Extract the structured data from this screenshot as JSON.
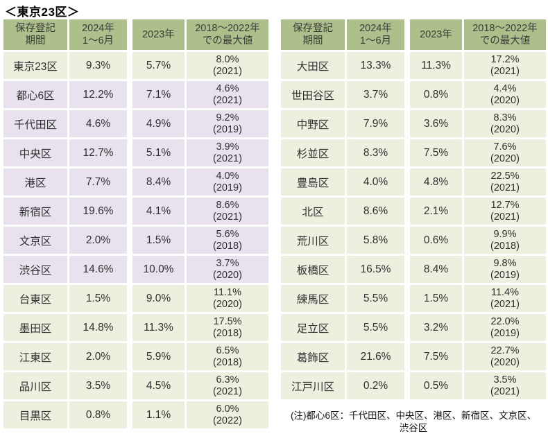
{
  "title": "＜東京23区＞",
  "colors": {
    "header_bg": "#adc08b",
    "row_green": "#ebf1de",
    "row_highlight": "#e7e2ee",
    "text": "#3b3b3b"
  },
  "note": {
    "line1": "(注)都心6区：千代田区、中央区、港区、新宿区、文京区、",
    "line2": "渋谷区"
  },
  "chart_data": {
    "type": "table",
    "title": "＜東京23区＞",
    "header_labels": [
      "保存登記\n期間",
      "2024年\n1～6月",
      "2023年",
      "2018～2022年\nでの最大値"
    ],
    "tables": [
      {
        "rows": [
          {
            "name": "東京23区",
            "v2024": "9.3%",
            "v2023": "5.7%",
            "max": "8.0%\n(2021)",
            "highlight": false
          },
          {
            "name": "都心6区",
            "v2024": "12.2%",
            "v2023": "7.1%",
            "max": "4.6%\n(2021)",
            "highlight": true
          },
          {
            "name": "千代田区",
            "v2024": "4.6%",
            "v2023": "4.9%",
            "max": "9.2%\n(2019)",
            "highlight": true
          },
          {
            "name": "中央区",
            "v2024": "12.7%",
            "v2023": "5.1%",
            "max": "3.9%\n(2021)",
            "highlight": true
          },
          {
            "name": "港区",
            "v2024": "7.7%",
            "v2023": "8.4%",
            "max": "4.0%\n(2019)",
            "highlight": true
          },
          {
            "name": "新宿区",
            "v2024": "19.6%",
            "v2023": "4.1%",
            "max": "8.6%\n(2021)",
            "highlight": true
          },
          {
            "name": "文京区",
            "v2024": "2.0%",
            "v2023": "1.5%",
            "max": "5.6%\n(2018)",
            "highlight": true
          },
          {
            "name": "渋谷区",
            "v2024": "14.6%",
            "v2023": "10.0%",
            "max": "3.7%\n(2020)",
            "highlight": true
          },
          {
            "name": "台東区",
            "v2024": "1.5%",
            "v2023": "9.0%",
            "max": "11.1%\n(2020)",
            "highlight": false
          },
          {
            "name": "墨田区",
            "v2024": "14.8%",
            "v2023": "11.3%",
            "max": "17.5%\n(2018)",
            "highlight": false
          },
          {
            "name": "江東区",
            "v2024": "2.0%",
            "v2023": "5.9%",
            "max": "6.5%\n(2018)",
            "highlight": false
          },
          {
            "name": "品川区",
            "v2024": "3.5%",
            "v2023": "4.5%",
            "max": "6.3%\n(2021)",
            "highlight": false
          },
          {
            "name": "目黒区",
            "v2024": "0.8%",
            "v2023": "1.1%",
            "max": "6.0%\n(2022)",
            "highlight": false
          }
        ]
      },
      {
        "rows": [
          {
            "name": "大田区",
            "v2024": "13.3%",
            "v2023": "11.3%",
            "max": "17.2%\n(2021)",
            "highlight": false
          },
          {
            "name": "世田谷区",
            "v2024": "3.7%",
            "v2023": "0.8%",
            "max": "4.4%\n(2020)",
            "highlight": false
          },
          {
            "name": "中野区",
            "v2024": "7.9%",
            "v2023": "3.6%",
            "max": "8.3%\n(2020)",
            "highlight": false
          },
          {
            "name": "杉並区",
            "v2024": "8.3%",
            "v2023": "7.5%",
            "max": "7.6%\n(2020)",
            "highlight": false
          },
          {
            "name": "豊島区",
            "v2024": "4.0%",
            "v2023": "4.8%",
            "max": "22.5%\n(2021)",
            "highlight": false
          },
          {
            "name": "北区",
            "v2024": "8.6%",
            "v2023": "2.1%",
            "max": "12.7%\n(2021)",
            "highlight": false
          },
          {
            "name": "荒川区",
            "v2024": "5.8%",
            "v2023": "0.6%",
            "max": "9.9%\n(2018)",
            "highlight": false
          },
          {
            "name": "板橋区",
            "v2024": "16.5%",
            "v2023": "8.4%",
            "max": "9.8%\n(2019)",
            "highlight": false
          },
          {
            "name": "練馬区",
            "v2024": "5.5%",
            "v2023": "1.5%",
            "max": "11.4%\n(2021)",
            "highlight": false
          },
          {
            "name": "足立区",
            "v2024": "5.5%",
            "v2023": "3.2%",
            "max": "22.0%\n(2019)",
            "highlight": false
          },
          {
            "name": "葛飾区",
            "v2024": "21.6%",
            "v2023": "7.5%",
            "max": "22.7%\n(2020)",
            "highlight": false
          },
          {
            "name": "江戸川区",
            "v2024": "0.2%",
            "v2023": "0.5%",
            "max": "3.5%\n(2021)",
            "highlight": false
          }
        ]
      }
    ],
    "note": "(注)都心6区：千代田区、中央区、港区、新宿区、文京区、渋谷区"
  }
}
